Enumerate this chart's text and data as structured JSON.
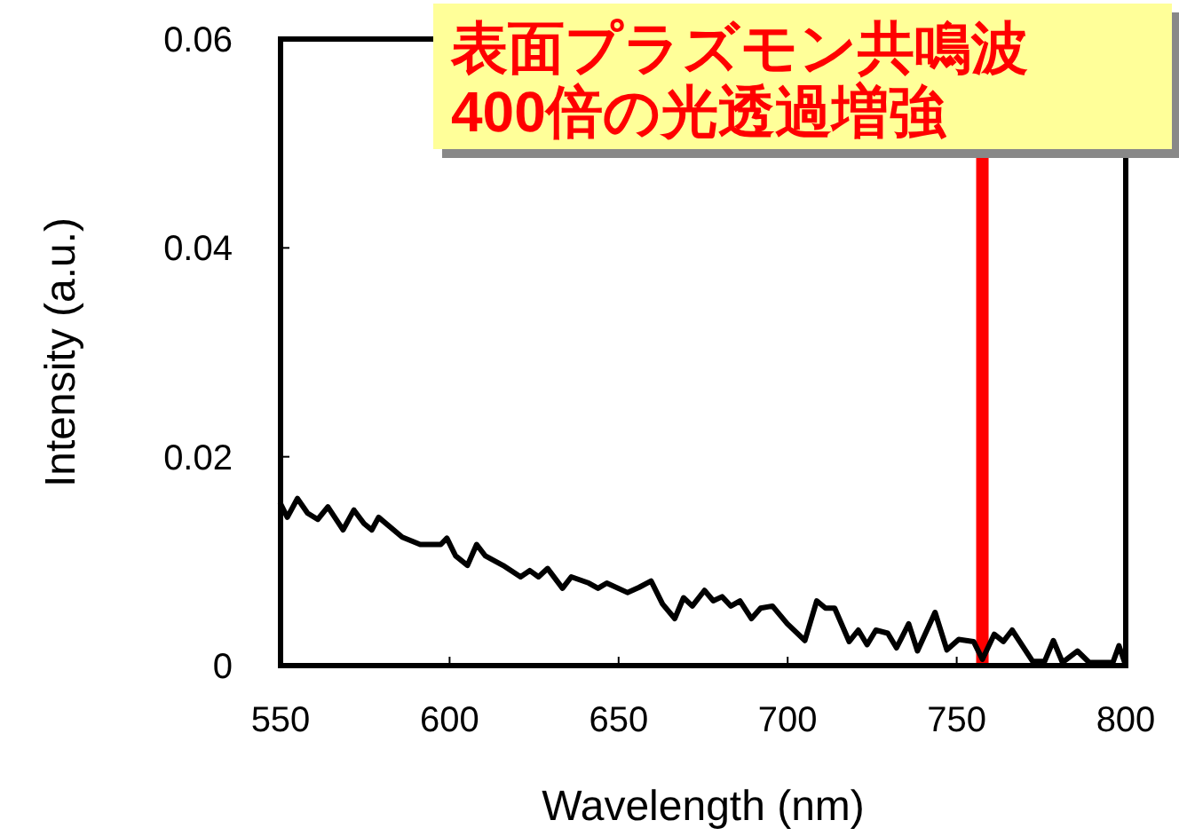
{
  "chart_data": {
    "type": "line",
    "xlabel": "Wavelength (nm)",
    "ylabel": "Intensity (a.u.)",
    "xlim": [
      550,
      800
    ],
    "xticks": [
      550,
      600,
      650,
      700,
      750,
      800
    ],
    "ylim": [
      0,
      0.06
    ],
    "yticks": [
      0,
      0.02,
      0.04,
      0.06
    ],
    "series": [
      {
        "color": "#000000",
        "x": [
          550,
          552,
          555,
          558,
          561,
          564,
          568.5,
          571.7,
          574.7,
          577,
          579,
          586,
          591.3,
          597.4,
          599.2,
          601.8,
          605.3,
          608,
          610.6,
          615.8,
          621,
          623.7,
          626.3,
          629,
          633.4,
          636,
          641.2,
          643.9,
          646.5,
          652.6,
          656.1,
          659.6,
          663,
          666.6,
          669.2,
          671.8,
          675.4,
          678,
          680.6,
          683.2,
          685.9,
          689.3,
          692,
          695.5,
          699.9,
          705.1,
          708.6,
          711.2,
          713.9,
          718.2,
          720.9,
          723.5,
          726.1,
          729.6,
          732.2,
          735.8,
          738.4,
          743.6,
          747.1,
          750.6,
          755,
          757.6,
          761.1,
          763.8,
          766.4,
          772.5,
          776,
          778.6,
          781.3,
          785.7,
          789.2,
          796.2,
          798,
          799.7
        ],
        "values": [
          0.0155,
          0.0142,
          0.016,
          0.0146,
          0.014,
          0.0152,
          0.013,
          0.0149,
          0.0136,
          0.013,
          0.0142,
          0.0123,
          0.0116,
          0.0116,
          0.0122,
          0.0105,
          0.0096,
          0.0116,
          0.0105,
          0.0096,
          0.0085,
          0.0091,
          0.0085,
          0.0093,
          0.0074,
          0.0085,
          0.0079,
          0.0074,
          0.0079,
          0.007,
          0.0075,
          0.0081,
          0.0059,
          0.0045,
          0.0065,
          0.0057,
          0.0072,
          0.0062,
          0.0066,
          0.0057,
          0.0062,
          0.0045,
          0.0055,
          0.0057,
          0.004,
          0.0024,
          0.0062,
          0.0055,
          0.0055,
          0.0023,
          0.0034,
          0.002,
          0.0034,
          0.0031,
          0.0017,
          0.004,
          0.0014,
          0.0051,
          0.0015,
          0.0025,
          0.0023,
          0.0006,
          0.003,
          0.0023,
          0.0034,
          0.0004,
          0.0004,
          0.0024,
          0.0003,
          0.0014,
          0.0003,
          0.0003,
          0.0019,
          0.0003
        ]
      }
    ],
    "ref_lines": [
      {
        "axis": "x",
        "value": 757.6,
        "color": "#ff0000"
      }
    ],
    "annotations": [
      "表面プラズモン共鳴波\n400倍の光透過増強"
    ]
  }
}
